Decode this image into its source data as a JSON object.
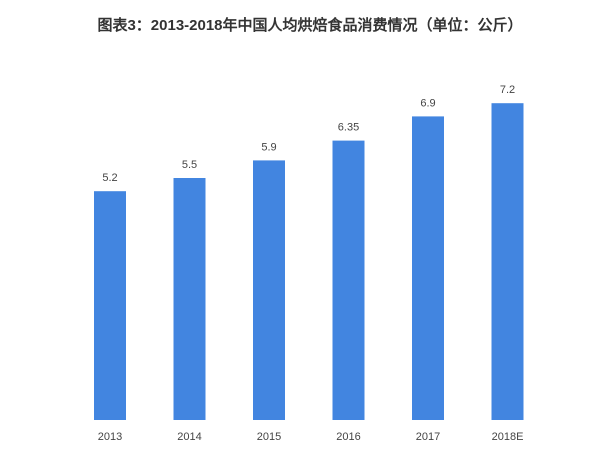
{
  "chart_data": {
    "type": "bar",
    "title": "图表3：2013-2018年中国人均烘焙食品消费情况（单位：公斤）",
    "categories": [
      "2013",
      "2014",
      "2015",
      "2016",
      "2017",
      "2018E"
    ],
    "values": [
      5.2,
      5.5,
      5.9,
      6.35,
      6.9,
      7.2
    ],
    "color": "#4285e0"
  }
}
